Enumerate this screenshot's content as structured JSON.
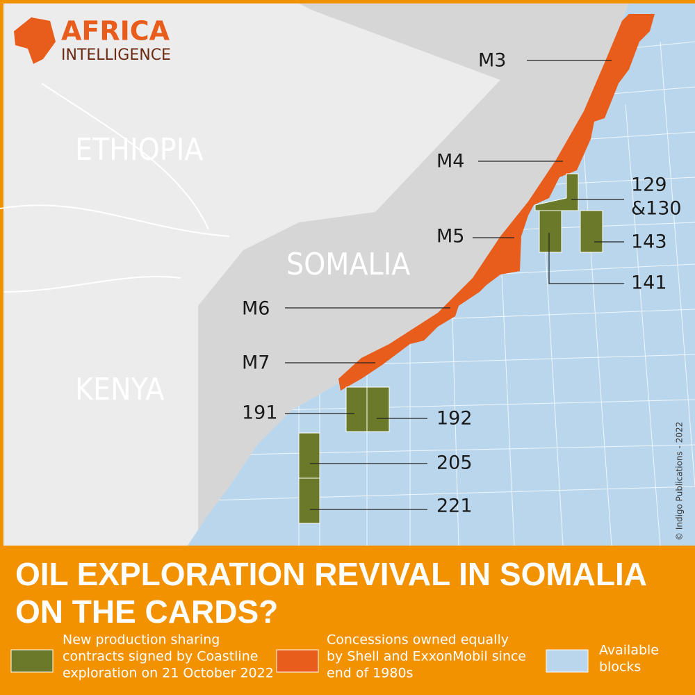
{
  "header": {
    "logo": [
      "AFRICA",
      "INTELLIGENCE"
    ]
  },
  "map": {
    "countries": [
      "ETHIOPIA",
      "SOMALIA",
      "KENYA"
    ],
    "blocks": [
      "M3",
      "M4",
      "129",
      "&130",
      "M5",
      "143",
      "141",
      "M6",
      "M7",
      "191",
      "192",
      "205",
      "221"
    ],
    "credit": "© Indigo Publications - 2022"
  },
  "title": [
    "OIL EXPLORATION REVIVAL IN SOMALIA",
    "ON THE CARDS?"
  ],
  "legend": [
    {
      "lines": [
        "New production sharing",
        "contracts signed by Coastline",
        "exploration on 21 October 2022"
      ]
    },
    {
      "lines": [
        "Concessions owned equally",
        "by Shell and ExxonMobil since",
        "end of 1980s"
      ]
    },
    {
      "lines": [
        "Available",
        "blocks"
      ]
    }
  ]
}
